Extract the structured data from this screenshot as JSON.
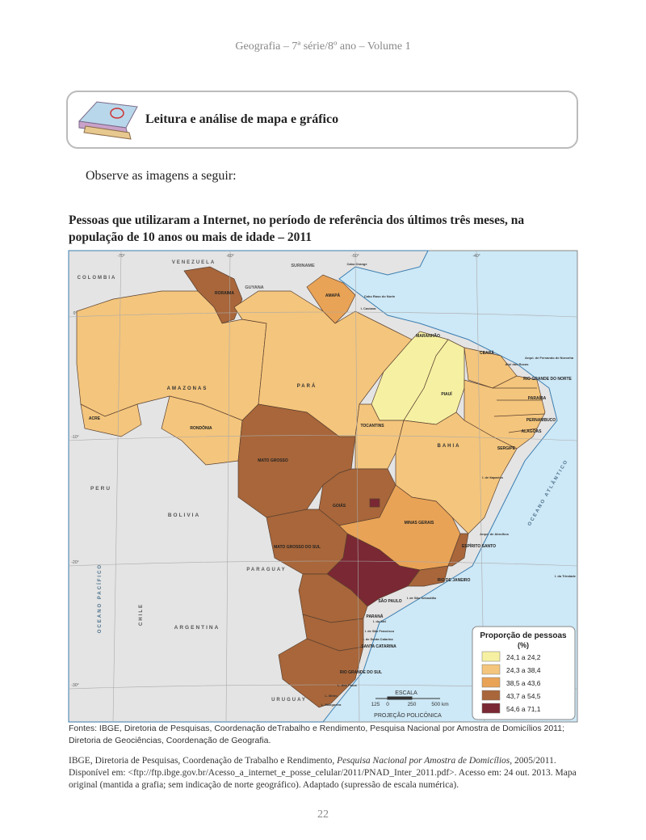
{
  "header": "Geografia – 7ª série/8º ano – Volume 1",
  "section_title": "Leitura e análise de mapa e gráfico",
  "intro": "Observe as imagens a seguir:",
  "map": {
    "title": "Pessoas que utilizaram a Internet, no período de referência dos últimos três meses, na população de 10 anos ou mais de idade – 2011",
    "labels": [
      "VENEZUELA",
      "COLOMBIA",
      "SURINAME",
      "GUYANA",
      "RORAIMA",
      "AMAPÁ",
      "AMAZONAS",
      "PARÁ",
      "MARANHÃO",
      "CEARÁ",
      "RIO GRANDE DO NORTE",
      "PARAÍBA",
      "PERNAMBUCO",
      "ALAGOAS",
      "SERGIPE",
      "PIAUÍ",
      "TOCANTINS",
      "BAHIA",
      "ACRE",
      "RONDÔNIA",
      "MATO GROSSO",
      "GOIÁS",
      "MINAS GERAIS",
      "ESPÍRITO SANTO",
      "RIO DE JANEIRO",
      "SÃO PAULO",
      "PARANÁ",
      "SANTA CATARINA",
      "RIO GRANDE DO SUL",
      "MATO GROSSO DO SUL",
      "PERU",
      "BOLIVIA",
      "PARAGUAY",
      "ARGENTINA",
      "CHILE",
      "URUGUAY",
      "OCEANO PACÍFICO",
      "OCEANO ATLÂNTICO",
      "Cabo Orange",
      "Cabo Raso do Norte",
      "I. Caviana",
      "Arqui. de Fernando de Noronha",
      "Atol das Rocas",
      "Arqui. de Abrolhos",
      "I. da Trindade",
      "I. de São Sebastião",
      "I. do Mel",
      "I. de São Francisco",
      "I. de Santa Catarina",
      "L. dos Patos",
      "L. Mirim",
      "L. Mangueira",
      "I. de Itaparica"
    ],
    "coordinates": [
      "-70°",
      "-60°",
      "-50°",
      "-40°",
      "0°",
      "-10°",
      "-20°",
      "-30°"
    ],
    "legend": {
      "title": "Proporção de pessoas",
      "unit": "(%)",
      "items": [
        {
          "label": "24,1 a 24,2",
          "color": "#f6f0a2"
        },
        {
          "label": "24,3 a 38,4",
          "color": "#f4c57c"
        },
        {
          "label": "38,5 a 43,6",
          "color": "#e9a356"
        },
        {
          "label": "43,7 a 54,5",
          "color": "#a8663a"
        },
        {
          "label": "54,6 a 71,1",
          "color": "#7a2833"
        }
      ]
    },
    "scale": {
      "title": "ESCALA",
      "ticks": [
        "125",
        "0",
        "250",
        "500 km"
      ],
      "projection": "PROJEÇÃO POLICÔNICA"
    },
    "sources": "Fontes: IBGE, Diretoria de Pesquisas, Coordenação deTrabalho e Rendimento, Pesquisa Nacional por Amostra de Domicílios 2011; Diretoria de Geociências, Coordenação de Geografia."
  },
  "citation": [
    "IBGE, Diretoria de Pesquisas, Coordenação de Trabalho e Rendimento, ",
    "Pesquisa Nacional por Amostra de Domicílios,",
    " 2005/2011. Disponível em: <ftp://ftp.ibge.gov.br/Acesso_a_internet_e_posse_celular/2011/PNAD_Inter_2011.pdf>. Acesso em: 24 out. 2013. Mapa original (mantida a grafia; sem indicação de norte geográfico). Adaptado (supressão de escala numérica)."
  ],
  "page_number": "22"
}
